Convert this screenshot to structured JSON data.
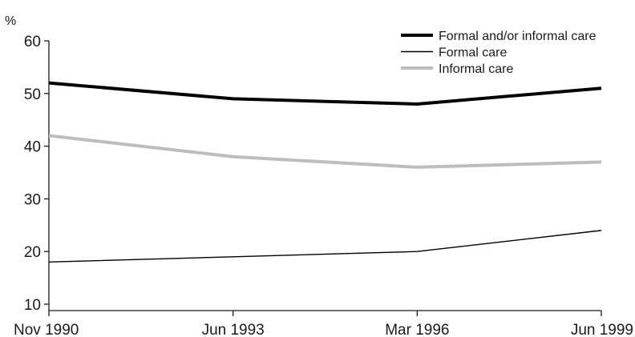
{
  "chart_data": {
    "type": "line",
    "title": "",
    "xlabel": "",
    "ylabel": "%",
    "categories": [
      "Nov 1990",
      "Jun 1993",
      "Mar 1996",
      "Jun 1999"
    ],
    "ylim": [
      10,
      60
    ],
    "yticks": [
      10,
      20,
      30,
      40,
      50,
      60
    ],
    "grid": false,
    "legend_position": "top-right",
    "series": [
      {
        "name": "Formal and/or informal care",
        "values": [
          52,
          49,
          48,
          51
        ],
        "color": "#000000"
      },
      {
        "name": "Formal care",
        "values": [
          18,
          19,
          20,
          24
        ],
        "color": "#000000"
      },
      {
        "name": "Informal care",
        "values": [
          42,
          38,
          36,
          37
        ],
        "color": "#bdbdbd"
      }
    ]
  }
}
